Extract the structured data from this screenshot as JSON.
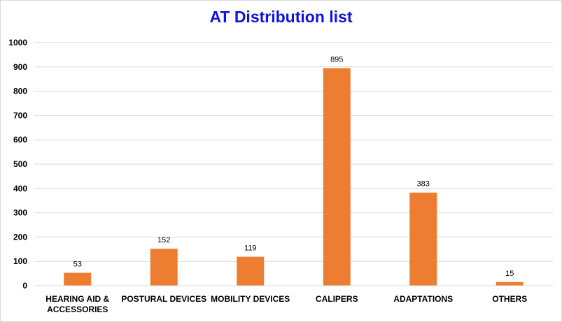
{
  "chart_data": {
    "type": "bar",
    "title": "AT Distribution list",
    "categories": [
      "HEARING AID & ACCESSORIES",
      "POSTURAL DEVICES",
      "MOBILITY DEVICES",
      "CALIPERS",
      "ADAPTATIONS",
      "OTHERS"
    ],
    "category_lines": [
      [
        "HEARING AID &",
        "ACCESSORIES"
      ],
      [
        "POSTURAL DEVICES"
      ],
      [
        "MOBILITY DEVICES"
      ],
      [
        "CALIPERS"
      ],
      [
        "ADAPTATIONS"
      ],
      [
        "OTHERS"
      ]
    ],
    "values": [
      53,
      152,
      119,
      895,
      383,
      15
    ],
    "ylim": [
      0,
      1000
    ],
    "yticks": [
      0,
      100,
      200,
      300,
      400,
      500,
      600,
      700,
      800,
      900,
      1000
    ],
    "grid": true,
    "data_labels": true,
    "xlabel": "",
    "ylabel": ""
  },
  "colors": {
    "bar": "#ed7d31",
    "title": "#1212e0",
    "grid": "#d9d9d9"
  }
}
